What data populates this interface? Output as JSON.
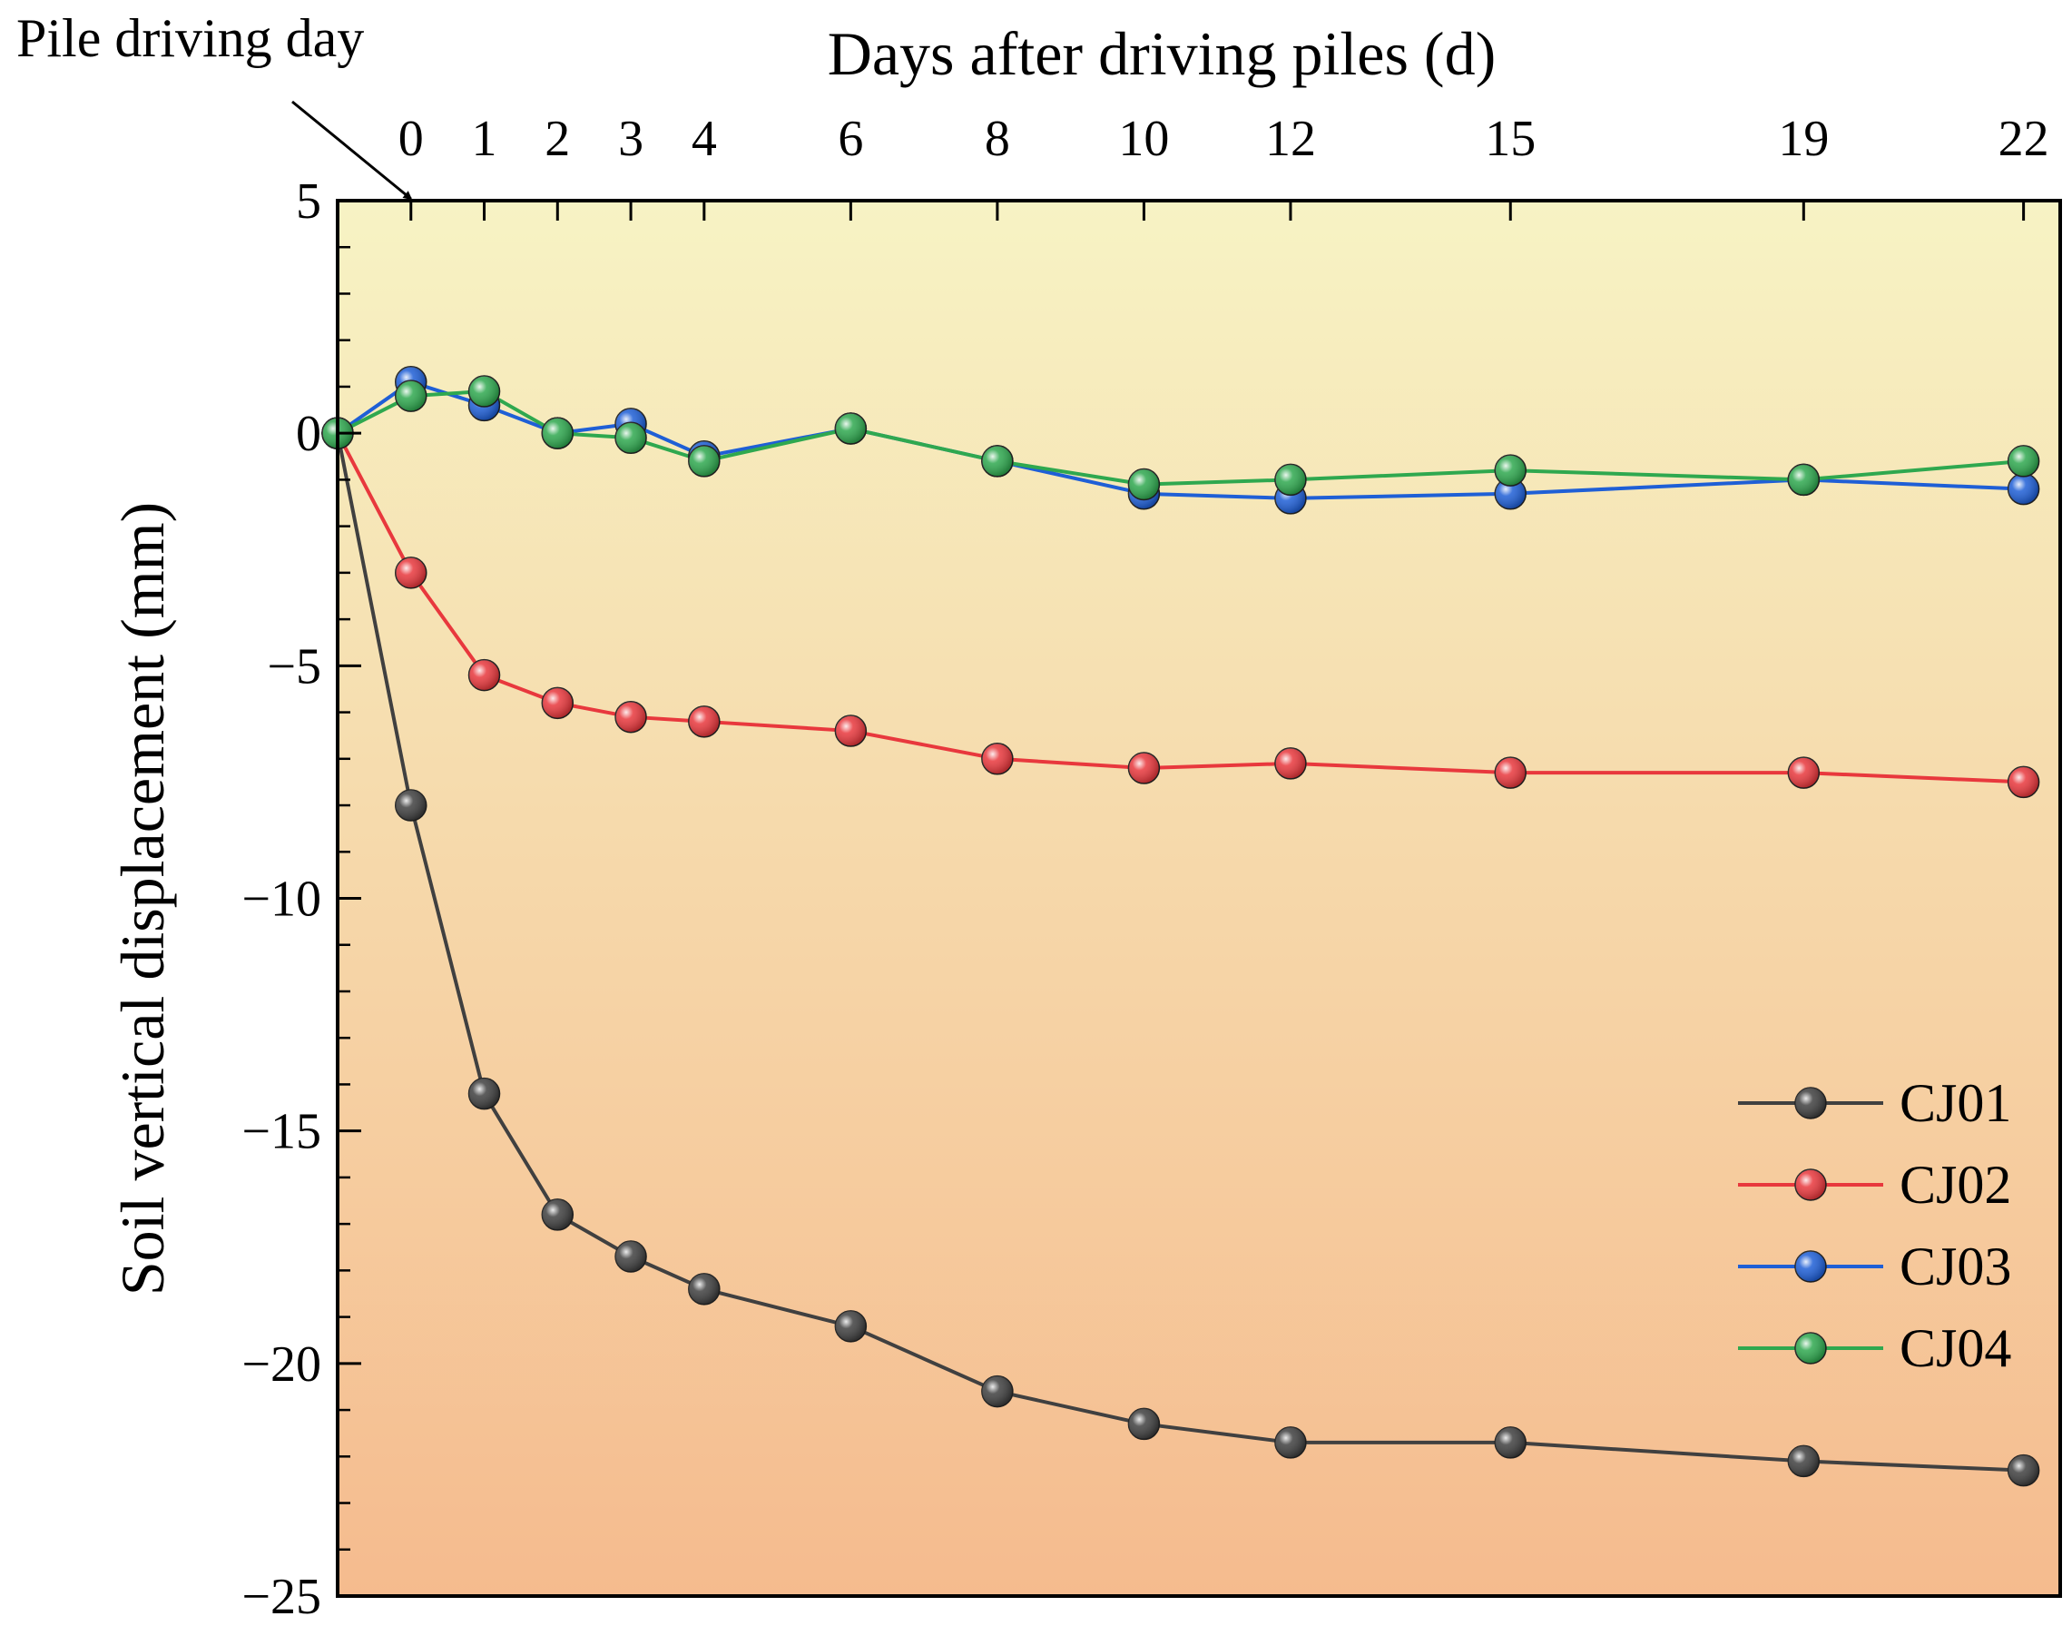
{
  "chart_data": {
    "type": "line",
    "xlabel": "Days after driving piles (d)",
    "ylabel": "Soil vertical displacement (mm)",
    "x_axis_position": "top",
    "xlim": [
      -1,
      22.5
    ],
    "ylim": [
      -25,
      5
    ],
    "x_ticks": [
      0,
      1,
      2,
      3,
      4,
      6,
      8,
      10,
      12,
      15,
      19,
      22
    ],
    "y_ticks": [
      5,
      0,
      -5,
      -10,
      -15,
      -20,
      -25
    ],
    "y_tick_labels": [
      "5",
      "0",
      "−5",
      "−10",
      "−15",
      "−20",
      "−25"
    ],
    "annotation": {
      "text": "Pile driving day",
      "points_to_x": 0
    },
    "background": {
      "gradient_top": "#f7f3c4",
      "gradient_bottom": "#f5bb8e"
    },
    "legend_position": "bottom-right",
    "series": [
      {
        "name": "CJ01",
        "color": "#404040",
        "x": [
          -1,
          0,
          1,
          2,
          3,
          4,
          6,
          8,
          10,
          12,
          15,
          19,
          22
        ],
        "values": [
          0.0,
          -8.0,
          -14.2,
          -16.8,
          -17.7,
          -18.4,
          -19.2,
          -20.6,
          -21.3,
          -21.7,
          -21.7,
          -22.1,
          -22.3
        ]
      },
      {
        "name": "CJ02",
        "color": "#e8383d",
        "x": [
          -1,
          0,
          1,
          2,
          3,
          4,
          6,
          8,
          10,
          12,
          15,
          19,
          22
        ],
        "values": [
          0.0,
          -3.0,
          -5.2,
          -5.8,
          -6.1,
          -6.2,
          -6.4,
          -7.0,
          -7.2,
          -7.1,
          -7.3,
          -7.3,
          -7.5
        ]
      },
      {
        "name": "CJ03",
        "color": "#1f5fd6",
        "x": [
          -1,
          0,
          1,
          2,
          3,
          4,
          6,
          8,
          10,
          12,
          15,
          19,
          22
        ],
        "values": [
          0.0,
          1.1,
          0.6,
          0.0,
          0.2,
          -0.5,
          0.1,
          -0.6,
          -1.3,
          -1.4,
          -1.3,
          -1.0,
          -1.2
        ]
      },
      {
        "name": "CJ04",
        "color": "#2fa84f",
        "x": [
          -1,
          0,
          1,
          2,
          3,
          4,
          6,
          8,
          10,
          12,
          15,
          19,
          22
        ],
        "values": [
          0.0,
          0.8,
          0.9,
          0.0,
          -0.1,
          -0.6,
          0.1,
          -0.6,
          -1.1,
          -1.0,
          -0.8,
          -1.0,
          -0.6
        ]
      }
    ]
  }
}
